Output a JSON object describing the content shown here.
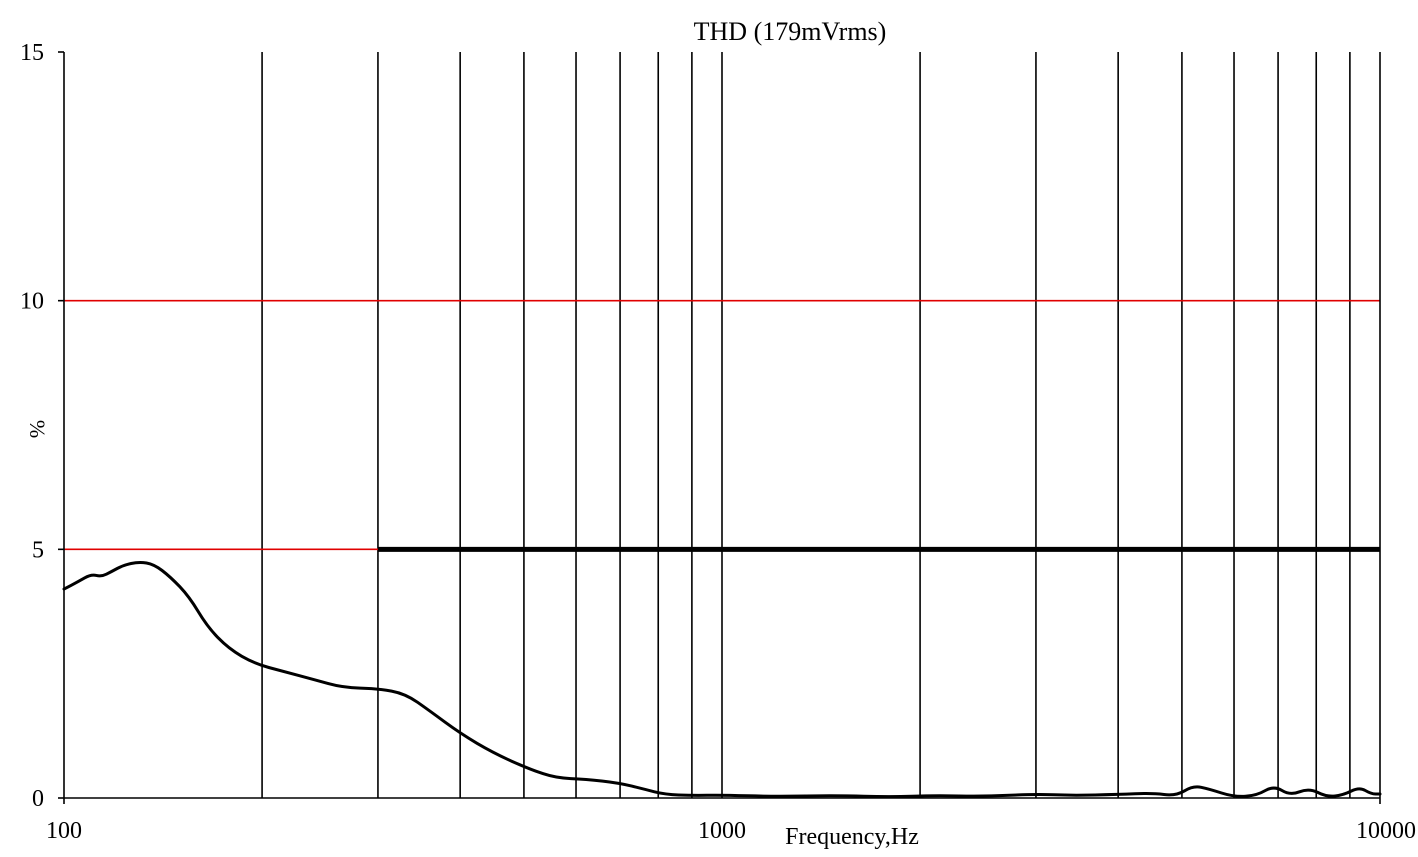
{
  "chart_data": {
    "type": "line",
    "title": "THD (179mVrms)",
    "xlabel": "Frequency,Hz",
    "ylabel": "%",
    "x_scale": "log",
    "xlim": [
      100,
      10000
    ],
    "ylim": [
      0,
      15
    ],
    "x_ticks": [
      100,
      1000,
      10000
    ],
    "x_tick_labels": [
      "100",
      "1000",
      "10000"
    ],
    "y_ticks": [
      0,
      5,
      10,
      15
    ],
    "y_tick_labels": [
      "0",
      "5",
      "10",
      "15"
    ],
    "grid": "vertical lines at 100–900 and 1000–9000 Hz decade steps",
    "limit_lines": [
      {
        "y": 10,
        "color": "#e00000"
      },
      {
        "y": 5,
        "color": "#e00000"
      }
    ],
    "limit_segment": {
      "x_start": 300,
      "x_end": 10000,
      "y": 5,
      "color": "#000000"
    },
    "series": [
      {
        "color": "#000000",
        "points": [
          [
            100,
            4.2
          ],
          [
            105,
            4.35
          ],
          [
            110,
            4.5
          ],
          [
            114,
            4.45
          ],
          [
            118,
            4.55
          ],
          [
            123,
            4.68
          ],
          [
            130,
            4.75
          ],
          [
            137,
            4.7
          ],
          [
            145,
            4.45
          ],
          [
            155,
            4.05
          ],
          [
            165,
            3.45
          ],
          [
            178,
            3.0
          ],
          [
            195,
            2.7
          ],
          [
            215,
            2.55
          ],
          [
            240,
            2.38
          ],
          [
            265,
            2.22
          ],
          [
            300,
            2.2
          ],
          [
            330,
            2.1
          ],
          [
            360,
            1.75
          ],
          [
            400,
            1.3
          ],
          [
            450,
            0.9
          ],
          [
            510,
            0.58
          ],
          [
            560,
            0.4
          ],
          [
            620,
            0.38
          ],
          [
            700,
            0.3
          ],
          [
            760,
            0.18
          ],
          [
            820,
            0.07
          ],
          [
            900,
            0.05
          ],
          [
            1000,
            0.06
          ],
          [
            1200,
            0.03
          ],
          [
            1500,
            0.05
          ],
          [
            1800,
            0.02
          ],
          [
            2100,
            0.05
          ],
          [
            2500,
            0.03
          ],
          [
            3000,
            0.08
          ],
          [
            3400,
            0.05
          ],
          [
            4000,
            0.07
          ],
          [
            4500,
            0.1
          ],
          [
            4900,
            0.04
          ],
          [
            5200,
            0.25
          ],
          [
            5500,
            0.18
          ],
          [
            6000,
            0.02
          ],
          [
            6500,
            0.05
          ],
          [
            6900,
            0.25
          ],
          [
            7300,
            0.05
          ],
          [
            7800,
            0.2
          ],
          [
            8300,
            0.02
          ],
          [
            8800,
            0.06
          ],
          [
            9300,
            0.22
          ],
          [
            9700,
            0.08
          ],
          [
            10000,
            0.08
          ]
        ]
      }
    ]
  }
}
